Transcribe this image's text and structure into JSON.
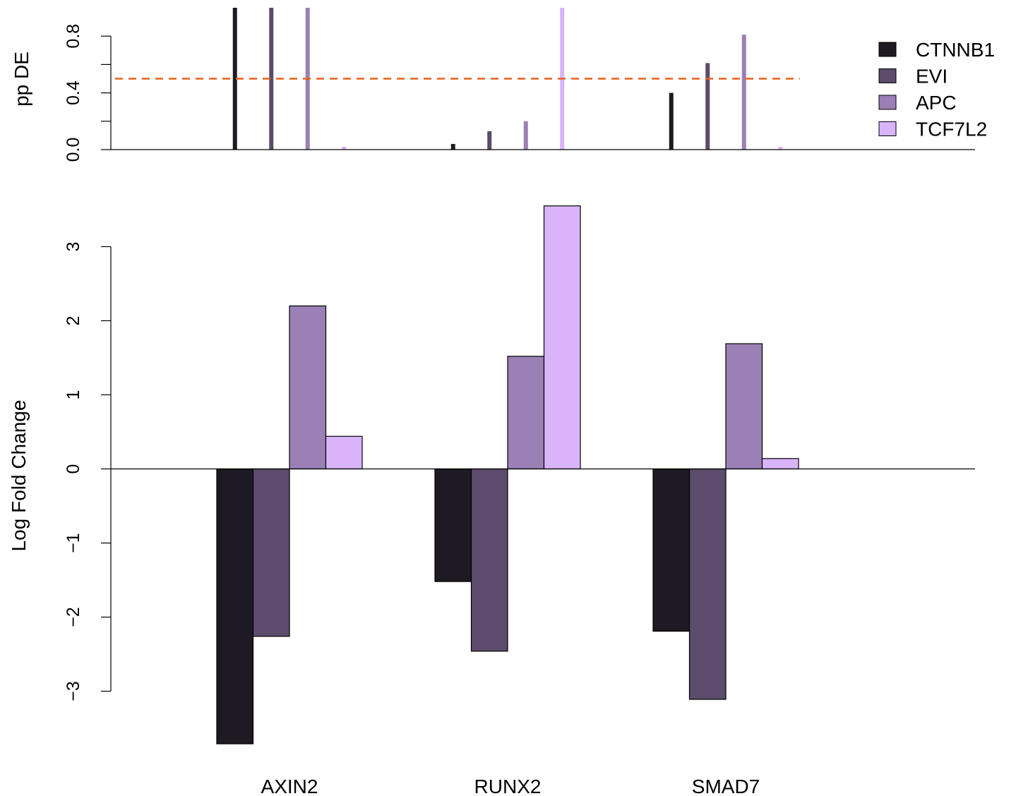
{
  "chart_data": [
    {
      "type": "bar",
      "panel": "top",
      "ylabel": "pp DE",
      "ylim": [
        0,
        1
      ],
      "yticks": [
        "0.0",
        "0.4",
        "0.8"
      ],
      "threshold": 0.5,
      "threshold_color": "#E8601C",
      "categories": [
        "AXIN2",
        "RUNX2",
        "SMAD7"
      ],
      "series": [
        {
          "name": "CTNNB1",
          "color": "#1E1A23",
          "values": [
            1.0,
            0.04,
            0.4
          ]
        },
        {
          "name": "EVI",
          "color": "#5D4B6B",
          "values": [
            1.0,
            0.13,
            0.61
          ]
        },
        {
          "name": "APC",
          "color": "#9A80B5",
          "values": [
            1.0,
            0.2,
            0.81
          ]
        },
        {
          "name": "TCF7L2",
          "color": "#D9B4FA",
          "values": [
            0.02,
            1.0,
            0.02
          ]
        }
      ],
      "legend_position": "top-right",
      "grid": false
    },
    {
      "type": "bar",
      "panel": "bottom",
      "ylabel": "Log Fold Change",
      "ylim": [
        -3.7,
        3.55
      ],
      "yticks": [
        "−3",
        "−2",
        "−1",
        "0",
        "1",
        "2",
        "3"
      ],
      "categories": [
        "AXIN2",
        "RUNX2",
        "SMAD7"
      ],
      "series": [
        {
          "name": "CTNNB1",
          "color": "#1E1A23",
          "values": [
            -3.71,
            -1.52,
            -2.19
          ]
        },
        {
          "name": "EVI",
          "color": "#5D4B6B",
          "values": [
            -2.26,
            -2.46,
            -3.11
          ]
        },
        {
          "name": "APC",
          "color": "#9A80B5",
          "values": [
            2.2,
            1.52,
            1.69
          ]
        },
        {
          "name": "TCF7L2",
          "color": "#D9B4FA",
          "values": [
            0.44,
            3.55,
            0.14
          ]
        }
      ],
      "grid": false
    }
  ]
}
